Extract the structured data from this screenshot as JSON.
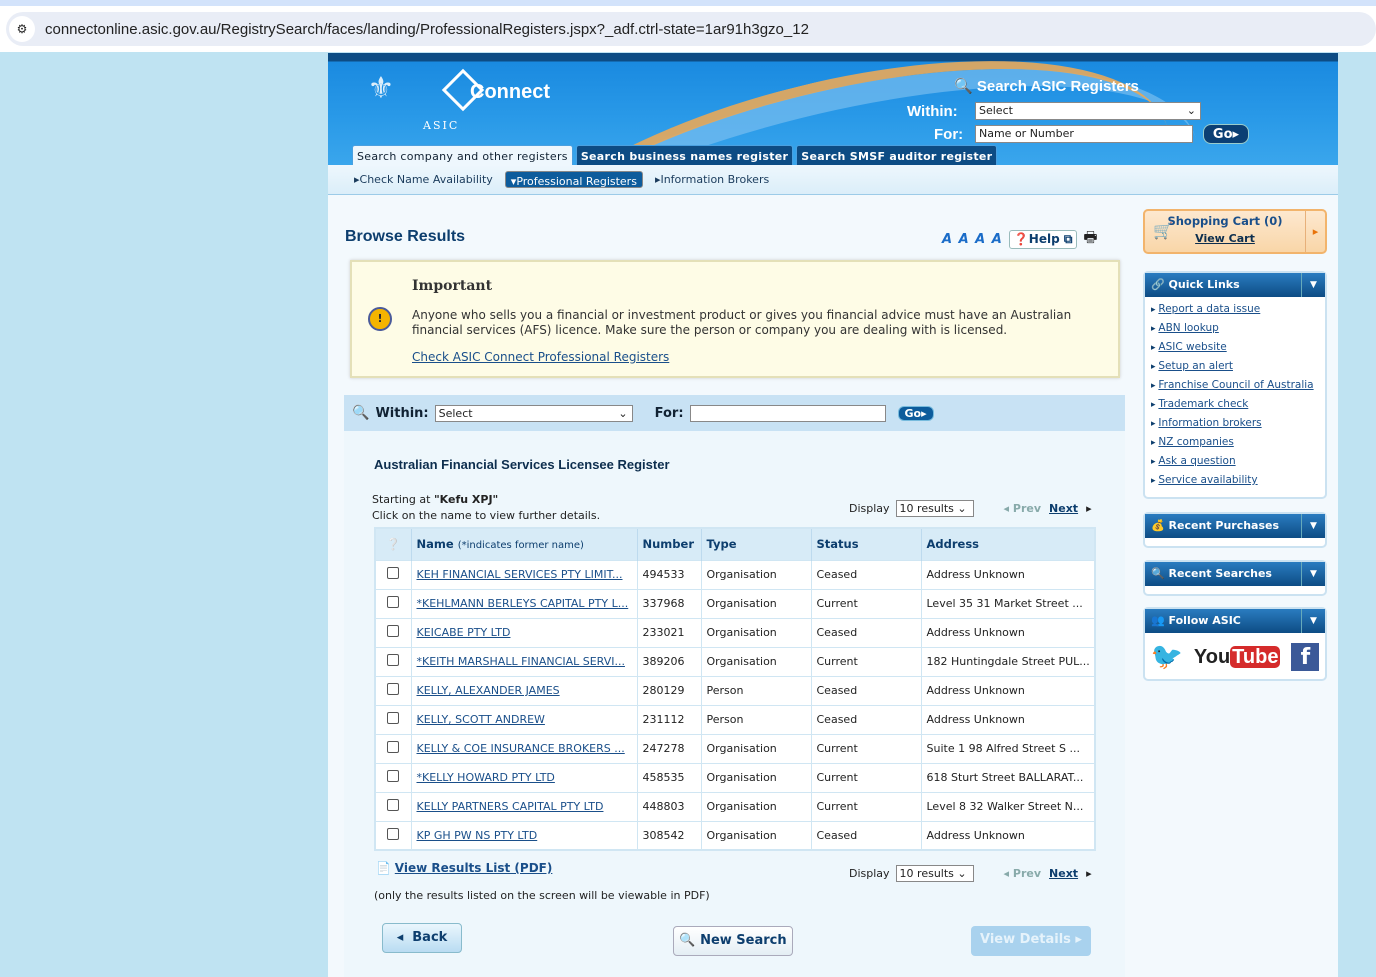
{
  "browser": {
    "url": "connectonline.asic.gov.au/RegistrySearch/faces/landing/ProfessionalRegisters.jspx?_adf.ctrl-state=1ar91h3gzo_12"
  },
  "header": {
    "brand": "Connect",
    "asic": "ASIC",
    "search_title": "Search ASIC Registers",
    "within_label": "Within:",
    "within_value": "Select",
    "for_label": "For:",
    "for_placeholder": "Name or Number",
    "go": "Go",
    "tabs": [
      "Search company and other registers",
      "Search business names register",
      "Search SMSF auditor register"
    ],
    "subnav": [
      "Check Name Availability",
      "Professional Registers",
      "Information Brokers"
    ]
  },
  "main": {
    "title": "Browse Results",
    "font_sizes": "A A A A",
    "help": "Help",
    "important": {
      "title": "Important",
      "body": "Anyone who sells you a financial or investment product or gives you financial advice must have an Australian financial services (AFS) licence. Make sure the person or company you are dealing with is licensed.",
      "link": "Check ASIC Connect Professional Registers"
    },
    "searchbar": {
      "within_label": "Within:",
      "within_value": "Select",
      "for_label": "For:",
      "for_value": "",
      "go": "Go"
    },
    "register_title": "Australian Financial Services Licensee Register",
    "starting_prefix": "Starting at",
    "starting_value": "\"Kefu XPJ\"",
    "instructions": "Click on the name to view further details.",
    "display_label": "Display",
    "display_value": "10 results",
    "prev": "Prev",
    "next": "Next",
    "columns": {
      "name": "Name",
      "name_note": "(*indicates former name)",
      "number": "Number",
      "type": "Type",
      "status": "Status",
      "address": "Address"
    },
    "rows": [
      {
        "name": "KEH FINANCIAL SERVICES PTY LIMIT...",
        "number": "494533",
        "type": "Organisation",
        "status": "Ceased",
        "address": "Address Unknown"
      },
      {
        "name": "*KEHLMANN BERLEYS CAPITAL PTY L...",
        "number": "337968",
        "type": "Organisation",
        "status": "Current",
        "address": "Level 35 31 Market Street ..."
      },
      {
        "name": "KEICABE PTY LTD",
        "number": "233021",
        "type": "Organisation",
        "status": "Ceased",
        "address": "Address Unknown"
      },
      {
        "name": "*KEITH MARSHALL FINANCIAL SERVI...",
        "number": "389206",
        "type": "Organisation",
        "status": "Current",
        "address": "182 Huntingdale Street PUL..."
      },
      {
        "name": "KELLY, ALEXANDER JAMES",
        "number": "280129",
        "type": "Person",
        "status": "Ceased",
        "address": "Address Unknown"
      },
      {
        "name": "KELLY, SCOTT ANDREW",
        "number": "231112",
        "type": "Person",
        "status": "Ceased",
        "address": "Address Unknown"
      },
      {
        "name": "KELLY & COE INSURANCE BROKERS ...",
        "number": "247278",
        "type": "Organisation",
        "status": "Current",
        "address": "Suite 1 98 Alfred Street S ..."
      },
      {
        "name": "*KELLY HOWARD PTY LTD",
        "number": "458535",
        "type": "Organisation",
        "status": "Current",
        "address": "618 Sturt Street BALLARAT..."
      },
      {
        "name": "KELLY PARTNERS CAPITAL PTY LTD",
        "number": "448803",
        "type": "Organisation",
        "status": "Current",
        "address": "Level 8 32 Walker Street N..."
      },
      {
        "name": "KP GH PW NS PTY LTD",
        "number": "308542",
        "type": "Organisation",
        "status": "Ceased",
        "address": "Address Unknown"
      }
    ],
    "pdf_link": "View Results List (PDF)",
    "pdf_note": "(only the results listed on the screen will be viewable in PDF)",
    "back": "Back",
    "new_search": "New Search",
    "view_details": "View Details"
  },
  "sidebar": {
    "cart_title": "Shopping Cart (0)",
    "view_cart": "View Cart",
    "quick_links_title": "Quick Links",
    "quick_links": [
      "Report a data issue",
      "ABN lookup",
      "ASIC website",
      "Setup an alert",
      "Franchise Council of Australia",
      "Trademark check",
      "Information brokers",
      "NZ companies",
      "Ask a question",
      "Service availability"
    ],
    "recent_purchases": "Recent Purchases",
    "recent_searches": "Recent Searches",
    "follow": "Follow ASIC",
    "youtube_you": "You",
    "youtube_tube": "Tube"
  }
}
